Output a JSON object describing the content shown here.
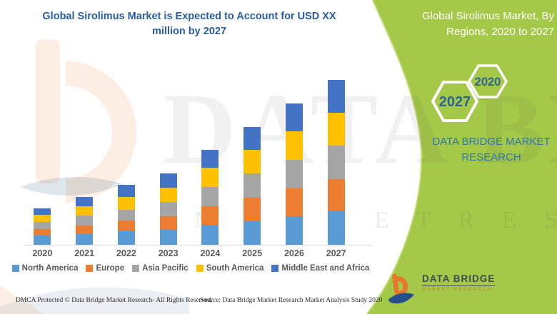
{
  "header": {
    "title_line1": "Global Sirolimus Market is Expected to Account for USD XX",
    "title_line2": "million by 2027"
  },
  "side_panel": {
    "green_color": "#A4C948",
    "title_line1": "Global Sirolimus Market, By",
    "title_line2": "Regions, 2020 to 2027",
    "hex_back_label": "2027",
    "hex_front_label": "2020",
    "brand_line1": "DATA BRIDGE MARKET",
    "brand_line2": "RESEARCH"
  },
  "logo": {
    "name": "DATA BRIDGE",
    "tagline": "MARKET RESEARCH"
  },
  "watermark": {
    "big_text": "DATA BRIDGE",
    "sub_text": "M A R K E T   R E S E A R C H"
  },
  "footer": {
    "dmca": "DMCA Protected © Data Bridge Market Research- All Rights Reserved.",
    "source": "Source: Data Bridge Market Research Market Analysis Study 2020"
  },
  "chart_data": {
    "type": "bar",
    "stacked": true,
    "title": "Global Sirolimus Market is Expected to Account for USD XX million by 2027",
    "xlabel": "",
    "ylabel": "",
    "value_note": "values are relative units estimated from bar heights; actual figures shown as USD XX million placeholder",
    "ylim": [
      0,
      240
    ],
    "grid": false,
    "legend_position": "bottom",
    "categories": [
      "2020",
      "2021",
      "2022",
      "2023",
      "2024",
      "2025",
      "2026",
      "2027"
    ],
    "series": [
      {
        "name": "North America",
        "color": "#5B9BD5",
        "values": [
          13,
          15,
          19,
          21,
          28,
          33,
          40,
          47
        ]
      },
      {
        "name": "Europe",
        "color": "#ED7D31",
        "values": [
          9,
          12,
          15,
          19,
          26,
          33,
          39,
          45
        ]
      },
      {
        "name": "Asia Pacific",
        "color": "#A5A5A5",
        "values": [
          10,
          14,
          15,
          20,
          27,
          34,
          40,
          47
        ]
      },
      {
        "name": "South America",
        "color": "#FFC000",
        "values": [
          10,
          13,
          18,
          20,
          27,
          33,
          40,
          46
        ]
      },
      {
        "name": "Middle East and Africa",
        "color": "#4472C4",
        "values": [
          9,
          13,
          17,
          20,
          25,
          32,
          39,
          46
        ]
      }
    ],
    "totals": [
      51,
      67,
      84,
      100,
      133,
      165,
      198,
      231
    ]
  }
}
